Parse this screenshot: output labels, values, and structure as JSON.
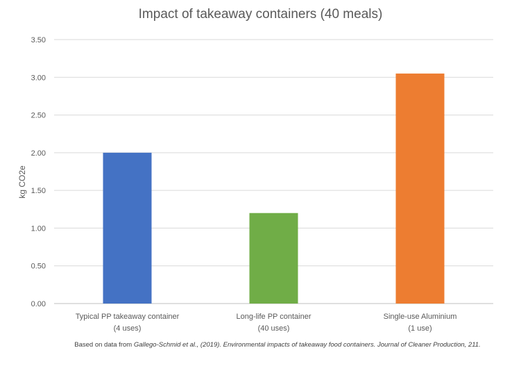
{
  "chart_data": {
    "type": "bar",
    "title": "Impact of takeaway containers (40 meals)",
    "ylabel": "kg CO2e",
    "xlabel": "",
    "ylim": [
      0,
      3.5
    ],
    "yticks": [
      "0.00",
      "0.50",
      "1.00",
      "1.50",
      "2.00",
      "2.50",
      "3.00",
      "3.50"
    ],
    "grid": true,
    "categories": [
      {
        "line1": "Typical PP takeaway container",
        "line2": "(4 uses)"
      },
      {
        "line1": "Long-life PP container",
        "line2": "(40 uses)"
      },
      {
        "line1": "Single-use Aluminium",
        "line2": "(1 use)"
      }
    ],
    "values": [
      2.0,
      1.2,
      3.05
    ],
    "colors": [
      "#4472C4",
      "#70AD47",
      "#ED7D31"
    ]
  },
  "source": {
    "prefix": "Based on data from ",
    "italic": "Gallego-Schmid et al., (2019). Environmental impacts of takeaway food containers. Journal of Cleaner Production, 211."
  }
}
